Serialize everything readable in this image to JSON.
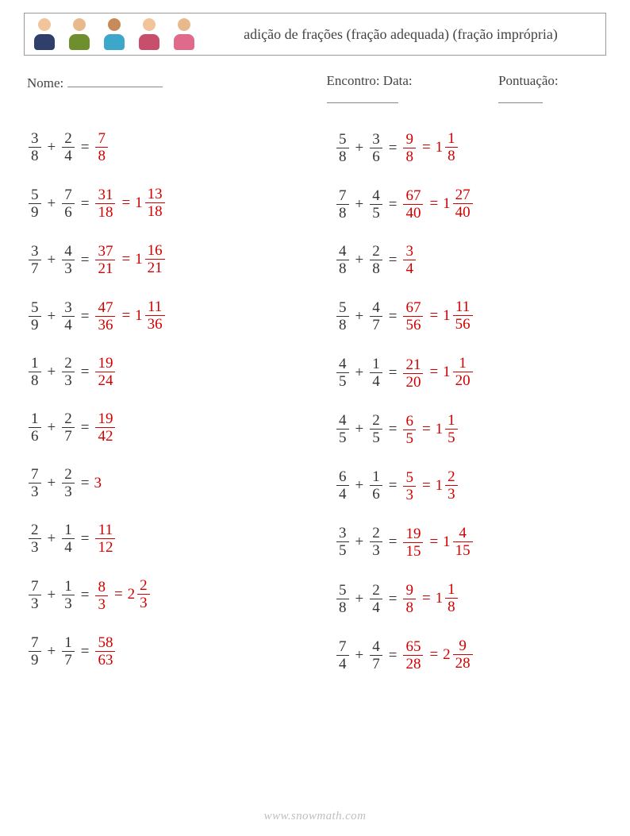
{
  "header": {
    "title": "adição de frações (fração adequada) (fração imprópria)",
    "avatars": [
      {
        "head": "#f2c49b",
        "body": "#2f3e6b"
      },
      {
        "head": "#e8b98c",
        "body": "#6f8f2f"
      },
      {
        "head": "#c78a5a",
        "body": "#3da7c9"
      },
      {
        "head": "#f2c49b",
        "body": "#c84f6b"
      },
      {
        "head": "#e8b98c",
        "body": "#e06a8a"
      }
    ]
  },
  "fields": {
    "name_label": "Nome:",
    "date_label": "Encontro: Data:",
    "score_label": "Pontuação:"
  },
  "watermark": "www.snowmath.com",
  "colors": {
    "answer": "#d10000",
    "text": "#333333"
  },
  "equations": {
    "left": [
      {
        "a": [
          3,
          8
        ],
        "b": [
          2,
          4
        ],
        "r": [
          7,
          8
        ]
      },
      {
        "a": [
          5,
          9
        ],
        "b": [
          7,
          6
        ],
        "r": [
          31,
          18
        ],
        "m": [
          1,
          13,
          18
        ]
      },
      {
        "a": [
          3,
          7
        ],
        "b": [
          4,
          3
        ],
        "r": [
          37,
          21
        ],
        "m": [
          1,
          16,
          21
        ]
      },
      {
        "a": [
          5,
          9
        ],
        "b": [
          3,
          4
        ],
        "r": [
          47,
          36
        ],
        "m": [
          1,
          11,
          36
        ]
      },
      {
        "a": [
          1,
          8
        ],
        "b": [
          2,
          3
        ],
        "r": [
          19,
          24
        ]
      },
      {
        "a": [
          1,
          6
        ],
        "b": [
          2,
          7
        ],
        "r": [
          19,
          42
        ]
      },
      {
        "a": [
          7,
          3
        ],
        "b": [
          2,
          3
        ],
        "int": 3
      },
      {
        "a": [
          2,
          3
        ],
        "b": [
          1,
          4
        ],
        "r": [
          11,
          12
        ]
      },
      {
        "a": [
          7,
          3
        ],
        "b": [
          1,
          3
        ],
        "r": [
          8,
          3
        ],
        "m": [
          2,
          2,
          3
        ]
      },
      {
        "a": [
          7,
          9
        ],
        "b": [
          1,
          7
        ],
        "r": [
          58,
          63
        ]
      }
    ],
    "right": [
      {
        "a": [
          5,
          8
        ],
        "b": [
          3,
          6
        ],
        "r": [
          9,
          8
        ],
        "m": [
          1,
          1,
          8
        ]
      },
      {
        "a": [
          7,
          8
        ],
        "b": [
          4,
          5
        ],
        "r": [
          67,
          40
        ],
        "m": [
          1,
          27,
          40
        ]
      },
      {
        "a": [
          4,
          8
        ],
        "b": [
          2,
          8
        ],
        "r": [
          3,
          4
        ]
      },
      {
        "a": [
          5,
          8
        ],
        "b": [
          4,
          7
        ],
        "r": [
          67,
          56
        ],
        "m": [
          1,
          11,
          56
        ]
      },
      {
        "a": [
          4,
          5
        ],
        "b": [
          1,
          4
        ],
        "r": [
          21,
          20
        ],
        "m": [
          1,
          1,
          20
        ]
      },
      {
        "a": [
          4,
          5
        ],
        "b": [
          2,
          5
        ],
        "r": [
          6,
          5
        ],
        "m": [
          1,
          1,
          5
        ]
      },
      {
        "a": [
          6,
          4
        ],
        "b": [
          1,
          6
        ],
        "r": [
          5,
          3
        ],
        "m": [
          1,
          2,
          3
        ]
      },
      {
        "a": [
          3,
          5
        ],
        "b": [
          2,
          3
        ],
        "r": [
          19,
          15
        ],
        "m": [
          1,
          4,
          15
        ]
      },
      {
        "a": [
          5,
          8
        ],
        "b": [
          2,
          4
        ],
        "r": [
          9,
          8
        ],
        "m": [
          1,
          1,
          8
        ]
      },
      {
        "a": [
          7,
          4
        ],
        "b": [
          4,
          7
        ],
        "r": [
          65,
          28
        ],
        "m": [
          2,
          9,
          28
        ]
      }
    ]
  }
}
